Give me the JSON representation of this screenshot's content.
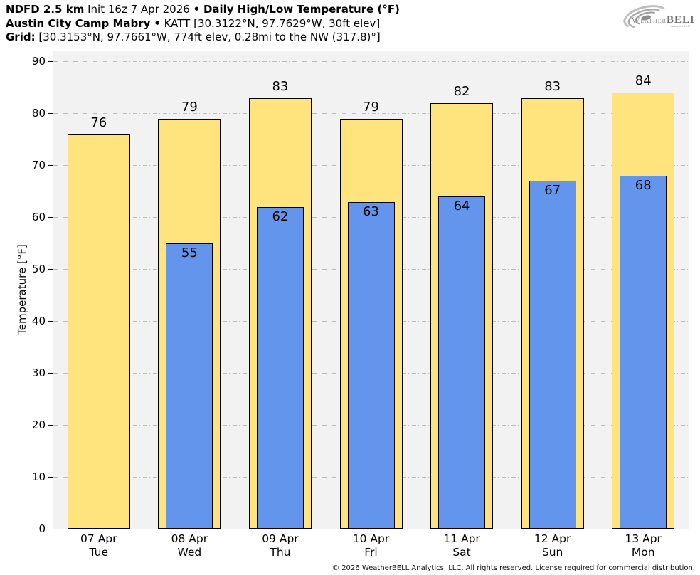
{
  "header": {
    "line1": {
      "model": "NDFD 2.5 km",
      "init": "Init 16z 7 Apr 2026",
      "bullet": "•",
      "title": "Daily High/Low Temperature (°F)"
    },
    "line2": {
      "station": "Austin City Camp Mabry",
      "bullet": "•",
      "details": "KATT [30.3122°N, 97.7629°W, 30ft elev]"
    },
    "line3": {
      "label": "Grid:",
      "details": "[30.3153°N, 97.7661°W, 774ft elev, 0.28mi to the NW (317.8)°]"
    }
  },
  "logo": {
    "weather": "Weather",
    "bell": "BELL",
    "subtext": "Analytics LLC"
  },
  "chart_data": {
    "type": "bar",
    "title": "Daily High/Low Temperature (°F)",
    "categories": [
      {
        "date": "07 Apr",
        "day": "Tue"
      },
      {
        "date": "08 Apr",
        "day": "Wed"
      },
      {
        "date": "09 Apr",
        "day": "Thu"
      },
      {
        "date": "10 Apr",
        "day": "Fri"
      },
      {
        "date": "11 Apr",
        "day": "Sat"
      },
      {
        "date": "12 Apr",
        "day": "Sun"
      },
      {
        "date": "13 Apr",
        "day": "Mon"
      }
    ],
    "series": [
      {
        "name": "High",
        "color": "#FFE37C",
        "values": [
          76,
          79,
          83,
          79,
          82,
          83,
          84
        ]
      },
      {
        "name": "Low",
        "color": "#6495ED",
        "values": [
          null,
          55,
          62,
          63,
          64,
          67,
          68
        ]
      }
    ],
    "xlabel": "",
    "ylabel": "Temperature [°F]",
    "ylim": [
      0,
      92
    ],
    "yticks": [
      0,
      10,
      20,
      30,
      40,
      50,
      60,
      70,
      80,
      90
    ],
    "grid": "horizontal dash-dot",
    "plot_background": "#F2F2F2",
    "gridline_color": "#BBBBBB",
    "bar_border_color": "#000000",
    "legend": "none"
  },
  "footer": {
    "copyright": "© 2026 WeatherBELL Analytics, LLC. All rights reserved. License required for commercial distribution."
  }
}
